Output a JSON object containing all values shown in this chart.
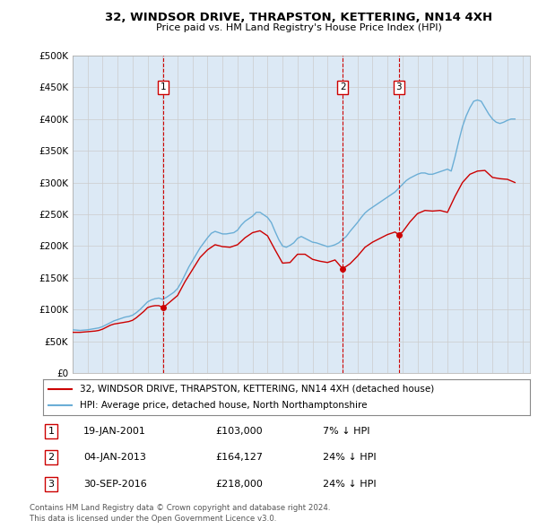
{
  "title": "32, WINDSOR DRIVE, THRAPSTON, KETTERING, NN14 4XH",
  "subtitle": "Price paid vs. HM Land Registry's House Price Index (HPI)",
  "plot_bg_color": "#dce9f5",
  "ylim": [
    0,
    500000
  ],
  "yticks": [
    0,
    50000,
    100000,
    150000,
    200000,
    250000,
    300000,
    350000,
    400000,
    450000,
    500000
  ],
  "ytick_labels": [
    "£0",
    "£50K",
    "£100K",
    "£150K",
    "£200K",
    "£250K",
    "£300K",
    "£350K",
    "£400K",
    "£450K",
    "£500K"
  ],
  "xlim_start": 1995.0,
  "xlim_end": 2025.5,
  "hpi_color": "#6baed6",
  "price_color": "#cc0000",
  "transactions": [
    {
      "num": 1,
      "date_str": "19-JAN-2001",
      "year": 2001.05,
      "price": 103000,
      "label": "7% ↓ HPI"
    },
    {
      "num": 2,
      "date_str": "04-JAN-2013",
      "year": 2013.01,
      "price": 164127,
      "label": "24% ↓ HPI"
    },
    {
      "num": 3,
      "date_str": "30-SEP-2016",
      "year": 2016.75,
      "price": 218000,
      "label": "24% ↓ HPI"
    }
  ],
  "legend_line1": "32, WINDSOR DRIVE, THRAPSTON, KETTERING, NN14 4XH (detached house)",
  "legend_line2": "HPI: Average price, detached house, North Northamptonshire",
  "footer1": "Contains HM Land Registry data © Crown copyright and database right 2024.",
  "footer2": "This data is licensed under the Open Government Licence v3.0.",
  "hpi_data_x": [
    1995.0,
    1995.25,
    1995.5,
    1995.75,
    1996.0,
    1996.25,
    1996.5,
    1996.75,
    1997.0,
    1997.25,
    1997.5,
    1997.75,
    1998.0,
    1998.25,
    1998.5,
    1998.75,
    1999.0,
    1999.25,
    1999.5,
    1999.75,
    2000.0,
    2000.25,
    2000.5,
    2000.75,
    2001.0,
    2001.25,
    2001.5,
    2001.75,
    2002.0,
    2002.25,
    2002.5,
    2002.75,
    2003.0,
    2003.25,
    2003.5,
    2003.75,
    2004.0,
    2004.25,
    2004.5,
    2004.75,
    2005.0,
    2005.25,
    2005.5,
    2005.75,
    2006.0,
    2006.25,
    2006.5,
    2006.75,
    2007.0,
    2007.25,
    2007.5,
    2007.75,
    2008.0,
    2008.25,
    2008.5,
    2008.75,
    2009.0,
    2009.25,
    2009.5,
    2009.75,
    2010.0,
    2010.25,
    2010.5,
    2010.75,
    2011.0,
    2011.25,
    2011.5,
    2011.75,
    2012.0,
    2012.25,
    2012.5,
    2012.75,
    2013.0,
    2013.25,
    2013.5,
    2013.75,
    2014.0,
    2014.25,
    2014.5,
    2014.75,
    2015.0,
    2015.25,
    2015.5,
    2015.75,
    2016.0,
    2016.25,
    2016.5,
    2016.75,
    2017.0,
    2017.25,
    2017.5,
    2017.75,
    2018.0,
    2018.25,
    2018.5,
    2018.75,
    2019.0,
    2019.25,
    2019.5,
    2019.75,
    2020.0,
    2020.25,
    2020.5,
    2020.75,
    2021.0,
    2021.25,
    2021.5,
    2021.75,
    2022.0,
    2022.25,
    2022.5,
    2022.75,
    2023.0,
    2023.25,
    2023.5,
    2023.75,
    2024.0,
    2024.25,
    2024.5
  ],
  "hpi_data_y": [
    68000,
    67500,
    67000,
    67500,
    68000,
    69000,
    70000,
    71000,
    73000,
    76000,
    79000,
    82000,
    84000,
    86000,
    88000,
    89000,
    91000,
    95000,
    100000,
    106000,
    112000,
    115000,
    117000,
    118000,
    116000,
    119000,
    123000,
    127000,
    133000,
    143000,
    155000,
    167000,
    177000,
    187000,
    197000,
    205000,
    213000,
    220000,
    223000,
    221000,
    219000,
    219000,
    220000,
    221000,
    225000,
    233000,
    239000,
    243000,
    247000,
    253000,
    253000,
    249000,
    245000,
    237000,
    223000,
    210000,
    200000,
    198000,
    201000,
    205000,
    212000,
    215000,
    212000,
    209000,
    206000,
    205000,
    203000,
    201000,
    199000,
    200000,
    202000,
    205000,
    210000,
    215000,
    223000,
    230000,
    237000,
    245000,
    252000,
    257000,
    261000,
    265000,
    269000,
    273000,
    277000,
    281000,
    285000,
    291000,
    297000,
    303000,
    307000,
    310000,
    313000,
    315000,
    315000,
    313000,
    313000,
    315000,
    317000,
    319000,
    321000,
    318000,
    340000,
    365000,
    388000,
    405000,
    418000,
    428000,
    430000,
    428000,
    418000,
    408000,
    400000,
    395000,
    393000,
    395000,
    398000,
    400000,
    400000
  ],
  "price_data_x": [
    1995.0,
    1995.25,
    1995.5,
    1995.75,
    1996.0,
    1996.25,
    1996.5,
    1996.75,
    1997.0,
    1997.25,
    1997.5,
    1997.75,
    1998.0,
    1998.25,
    1998.5,
    1998.75,
    1999.0,
    1999.25,
    1999.5,
    1999.75,
    2000.0,
    2000.25,
    2000.5,
    2000.75,
    2001.05,
    2001.5,
    2002.0,
    2002.5,
    2003.0,
    2003.5,
    2004.0,
    2004.5,
    2005.0,
    2005.5,
    2006.0,
    2006.5,
    2007.0,
    2007.5,
    2008.0,
    2008.5,
    2009.0,
    2009.5,
    2010.0,
    2010.5,
    2011.0,
    2011.5,
    2012.0,
    2012.5,
    2013.01,
    2013.5,
    2014.0,
    2014.5,
    2015.0,
    2015.5,
    2016.0,
    2016.5,
    2016.75,
    2017.0,
    2017.5,
    2018.0,
    2018.5,
    2019.0,
    2019.5,
    2020.0,
    2020.5,
    2021.0,
    2021.5,
    2022.0,
    2022.5,
    2023.0,
    2023.5,
    2024.0,
    2024.5
  ],
  "price_data_y": [
    64000,
    64000,
    64000,
    64500,
    65000,
    65500,
    66000,
    67000,
    69000,
    72000,
    75000,
    77000,
    78000,
    79000,
    80000,
    81000,
    83000,
    87000,
    92000,
    97000,
    103000,
    105000,
    106000,
    106000,
    103000,
    112000,
    122000,
    144000,
    163000,
    182000,
    194000,
    202000,
    199000,
    198000,
    202000,
    213000,
    221000,
    224000,
    216000,
    194000,
    173000,
    174000,
    187000,
    187000,
    179000,
    176000,
    174000,
    178000,
    164127,
    172000,
    184000,
    198000,
    206000,
    212000,
    218000,
    222000,
    218000,
    222000,
    238000,
    251000,
    256000,
    255000,
    256000,
    253000,
    278000,
    300000,
    313000,
    318000,
    319000,
    308000,
    306000,
    305000,
    300000
  ]
}
